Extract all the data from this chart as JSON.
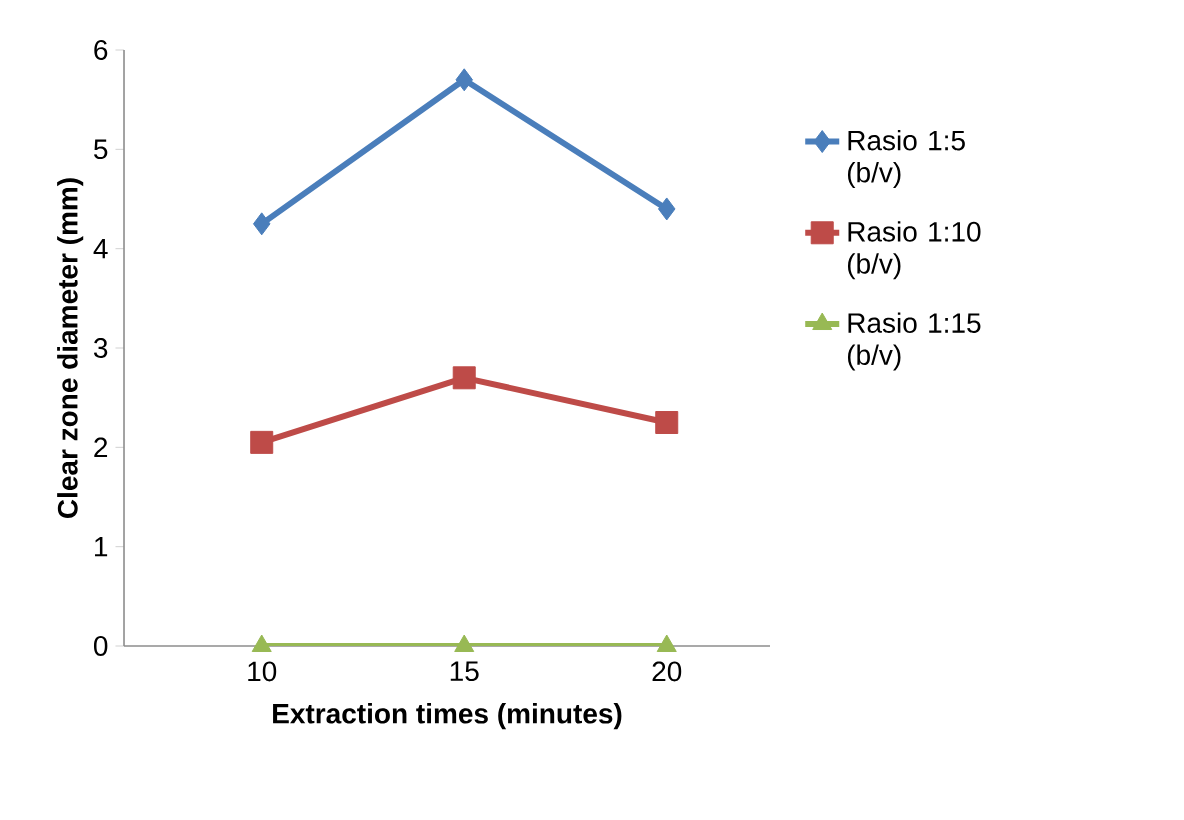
{
  "chart_data": {
    "type": "line",
    "xlabel": "Extraction times (minutes)",
    "ylabel": "Clear zone diameter (mm)",
    "categories": [
      "10",
      "15",
      "20"
    ],
    "ylim": [
      0,
      6
    ],
    "yticks": [
      0,
      1,
      2,
      3,
      4,
      5,
      6
    ],
    "grid": false,
    "legend": "right",
    "line_style": "solid",
    "series": [
      {
        "name": "Rasio 1:5 (b/v)",
        "color": "#4a7ebb",
        "marker": "diamond",
        "values": [
          4.25,
          5.7,
          4.4
        ]
      },
      {
        "name": "Rasio 1:10 (b/v)",
        "color": "#be4b48",
        "marker": "square",
        "values": [
          2.05,
          2.7,
          2.25
        ]
      },
      {
        "name": "Rasio 1:15 (b/v)",
        "color": "#98b954",
        "marker": "triangle",
        "values": [
          0,
          0,
          0
        ]
      }
    ]
  }
}
